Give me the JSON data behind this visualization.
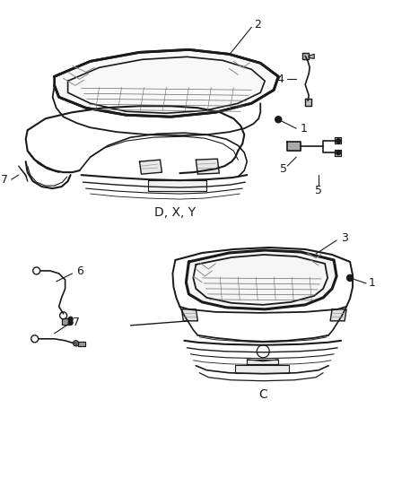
{
  "background_color": "#ffffff",
  "line_color": "#1a1a1a",
  "fig_width": 4.38,
  "fig_height": 5.33,
  "dpi": 100
}
